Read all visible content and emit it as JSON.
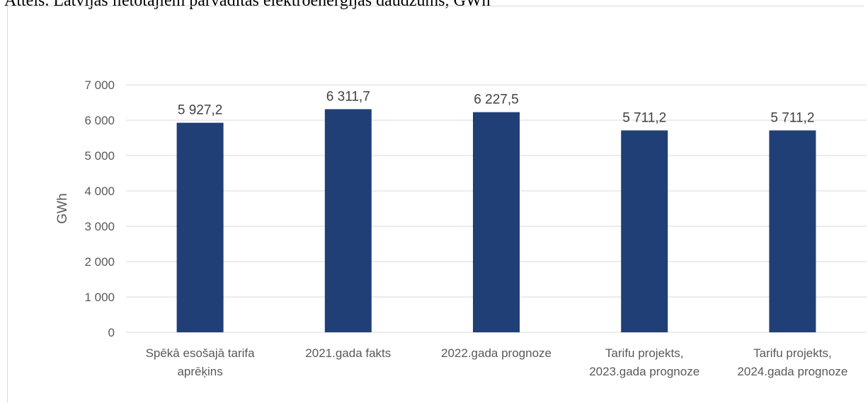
{
  "caption": "Attēls. Latvijas lietotājiem pārvadītās elektroenerģijas daudzums, GWh",
  "chart_data": {
    "type": "bar",
    "categories": [
      [
        "Spēkā esošajā tarifa",
        "aprēķins"
      ],
      [
        "2021.gada fakts"
      ],
      [
        "2022.gada prognoze"
      ],
      [
        "Tarifu projekts,",
        "2023.gada prognoze"
      ],
      [
        "Tarifu projekts,",
        "2024.gada prognoze"
      ]
    ],
    "values": [
      5927.2,
      6311.7,
      6227.5,
      5711.2,
      5711.2
    ],
    "value_labels": [
      "5 927,2",
      "6 311,7",
      "6 227,5",
      "5 711,2",
      "5 711,2"
    ],
    "ylabel": "GWh",
    "xlabel": "",
    "ylim": [
      0,
      7000
    ],
    "yticks": [
      0,
      1000,
      2000,
      3000,
      4000,
      5000,
      6000,
      7000
    ],
    "ytick_labels": [
      "0",
      "1 000",
      "2 000",
      "3 000",
      "4 000",
      "5 000",
      "6 000",
      "7 000"
    ],
    "grid": true,
    "bar_color": "#203f77",
    "grid_color": "#d9d9d9"
  }
}
